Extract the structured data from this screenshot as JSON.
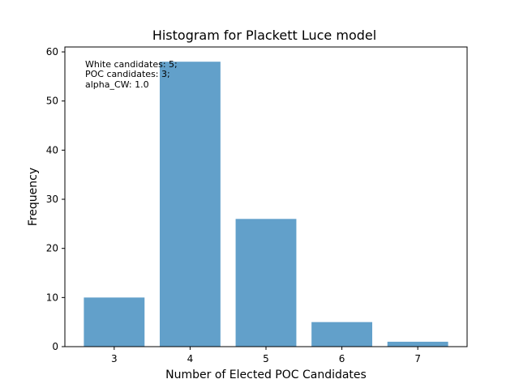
{
  "chart_data": {
    "type": "bar",
    "title": "Histogram for Plackett Luce model",
    "xlabel": "Number of Elected POC Candidates",
    "ylabel": "Frequency",
    "categories": [
      "3",
      "4",
      "5",
      "6",
      "7"
    ],
    "x": [
      3,
      4,
      5,
      6,
      7
    ],
    "values": [
      10,
      58,
      26,
      5,
      1
    ],
    "xlim": [
      2.35,
      7.65
    ],
    "ylim": [
      0,
      61
    ],
    "yticks": [
      0,
      10,
      20,
      30,
      40,
      50,
      60
    ],
    "xticks": [
      3,
      4,
      5,
      6,
      7
    ],
    "bar_color": "#62a0ca",
    "grid": false,
    "annotation": [
      "White candidates: 5;",
      "POC candidates: 3;",
      "alpha_CW: 1.0"
    ]
  }
}
